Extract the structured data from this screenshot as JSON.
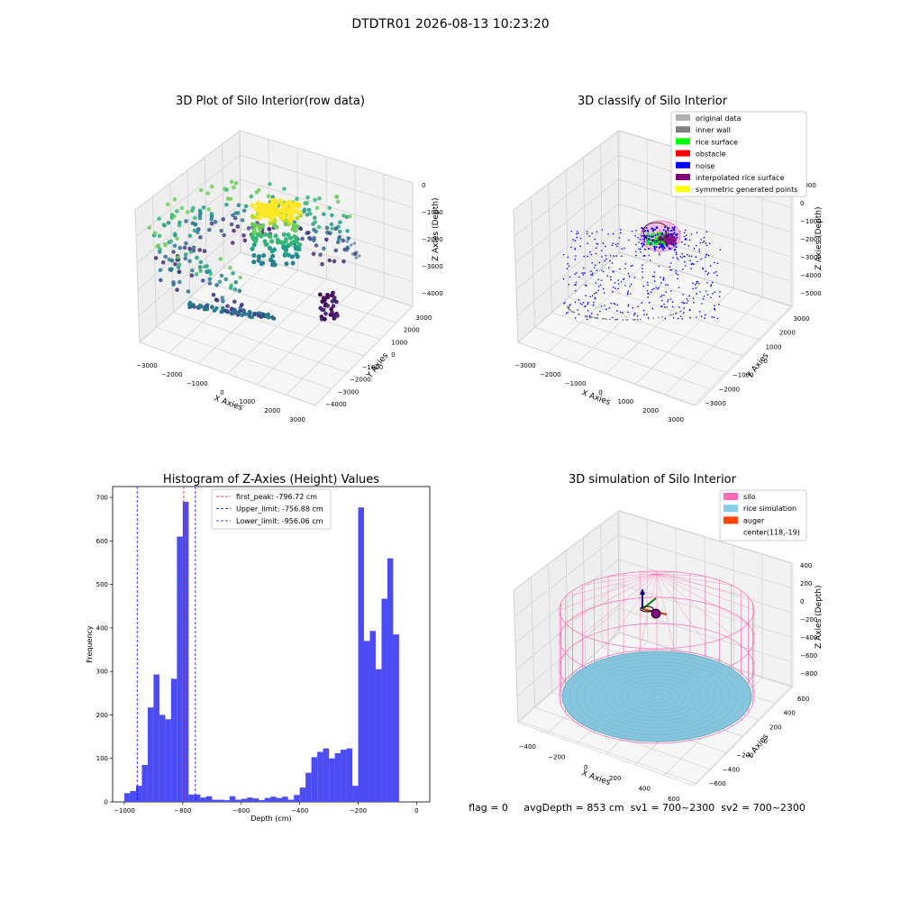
{
  "suptitle": "DTDTR01 2026-08-13 10:23:20",
  "status_line": "flag = 0     avgDepth = 853 cm  sv1 = 700~2300  sv2 = 700~2300",
  "chart_data": [
    {
      "type": "scatter",
      "subtype": "3d",
      "title": "3D Plot of Silo Interior(row data)",
      "xlabel": "X Axies",
      "ylabel": "Y Axies",
      "zlabel": "Z Axies (Depth)",
      "xticks": [
        "−3000",
        "−2000",
        "−1000",
        "0",
        "1000",
        "2000",
        "3000"
      ],
      "yticks": [
        "−4000",
        "−3000",
        "−2000",
        "−1000",
        "0",
        "1000",
        "2000",
        "3000"
      ],
      "zticks": [
        "−4000",
        "−3000",
        "−2000",
        "−1000",
        "0"
      ],
      "colormap": "viridis"
    },
    {
      "type": "scatter",
      "subtype": "3d",
      "title": "3D classify of Silo Interior",
      "xlabel": "X Axies",
      "ylabel": "Y Axies",
      "zlabel": "Z Axies (Depth)",
      "xticks": [
        "−3000",
        "−2000",
        "−1000",
        "0",
        "1000",
        "2000",
        "3000"
      ],
      "yticks": [
        "−3000",
        "−2000",
        "−1000",
        "0",
        "1000",
        "2000",
        "3000"
      ],
      "zticks": [
        "−5000",
        "−4000",
        "−3000",
        "−2000",
        "−1000",
        "0",
        "1000"
      ],
      "legend_position": "top-right",
      "legend": [
        {
          "label": "original data",
          "color": "#b0b0b0"
        },
        {
          "label": "inner wall",
          "color": "#808080"
        },
        {
          "label": "rice surface",
          "color": "#00ff00"
        },
        {
          "label": "obstacle",
          "color": "#ff0000"
        },
        {
          "label": "noise",
          "color": "#0000ff"
        },
        {
          "label": "interpolated rice surface",
          "color": "#800080"
        },
        {
          "label": "symmetric generated points",
          "color": "#ffff00"
        }
      ]
    },
    {
      "type": "bar",
      "subtype": "histogram",
      "title": "Histogram of Z-Axies (Height) Values",
      "xlabel": "Depth (cm)",
      "ylabel": "Frequency",
      "xlim": [
        -1040,
        45
      ],
      "ylim": [
        0,
        725
      ],
      "xticks": [
        -1000,
        -800,
        -600,
        -400,
        -200,
        0
      ],
      "yticks": [
        0,
        100,
        200,
        300,
        400,
        500,
        600,
        700
      ],
      "bar_color": "#4c4cf5",
      "bin_width": 20,
      "bin_start": -1000,
      "values": [
        20,
        25,
        37,
        85,
        217,
        293,
        200,
        190,
        283,
        610,
        690,
        17,
        17,
        10,
        13,
        5,
        5,
        4,
        13,
        5,
        7,
        10,
        8,
        4,
        9,
        12,
        9,
        12,
        5,
        16,
        33,
        67,
        103,
        115,
        123,
        100,
        112,
        120,
        123,
        37,
        677,
        370,
        393,
        305,
        467,
        560,
        385
      ],
      "vlines": [
        {
          "label": "first_peak: -796.72 cm",
          "x": -796.72,
          "color": "#ff0000"
        },
        {
          "label": "Upper_limit: -756.88 cm",
          "x": -756.88,
          "color": "#0000ff"
        },
        {
          "label": "Lower_limit: -956.06 cm",
          "x": -956.06,
          "color": "#0000ff"
        }
      ],
      "legend_position": "top-center"
    },
    {
      "type": "scatter",
      "subtype": "3d-simulation",
      "title": "3D simulation of Silo Interior",
      "xlabel": "X Axies",
      "ylabel": "Y Axies",
      "zlabel": "Z Axies (Depth)",
      "xticks": [
        "−400",
        "−200",
        "0",
        "200",
        "400",
        "600"
      ],
      "yticks": [
        "−600",
        "−400",
        "−200",
        "0",
        "200",
        "400",
        "600"
      ],
      "zticks": [
        "−800",
        "−600",
        "−400",
        "−200",
        "0",
        "200",
        "400"
      ],
      "legend_position": "top-right",
      "legend": [
        {
          "label": "silo",
          "color": "#ff69b4"
        },
        {
          "label": "rice simulation",
          "color": "#87ceeb"
        },
        {
          "label": "auger",
          "color": "#ff4500"
        },
        {
          "label": "center(118,-19)",
          "color": ""
        }
      ]
    }
  ]
}
